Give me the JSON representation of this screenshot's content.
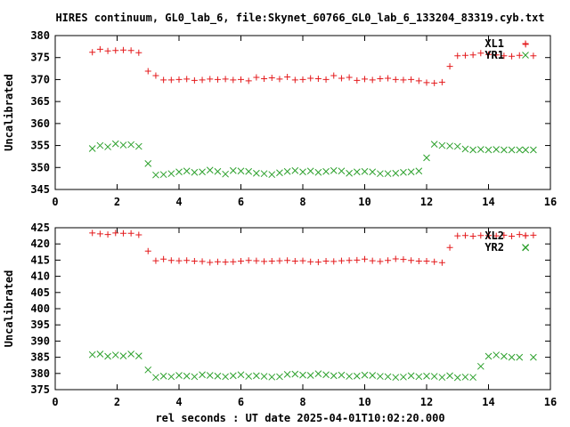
{
  "title": "HIRES continuum, GL0_lab_6, file:Skynet_60766_GL0_lab_6_133204_83319.cyb.txt",
  "xlabel": "rel seconds : UT date 2025-04-01T10:02:20.000",
  "colors": {
    "red": "#e41a1c",
    "green": "#2ca02c"
  },
  "chart_data": [
    {
      "type": "scatter",
      "ylabel": "Uncalibrated",
      "xlim": [
        0,
        16
      ],
      "ylim": [
        345,
        380
      ],
      "xticks": [
        0,
        2,
        4,
        6,
        8,
        10,
        12,
        14,
        16
      ],
      "yticks": [
        345,
        350,
        355,
        360,
        365,
        370,
        375,
        380
      ],
      "legend_position": "top-right",
      "series": [
        {
          "name": "XL1",
          "marker": "cross",
          "color": "#e41a1c",
          "x": [
            1.2,
            1.45,
            1.7,
            1.95,
            2.2,
            2.45,
            2.7,
            3.0,
            3.25,
            3.5,
            3.75,
            4.0,
            4.25,
            4.5,
            4.75,
            5.0,
            5.25,
            5.5,
            5.75,
            6.0,
            6.25,
            6.5,
            6.75,
            7.0,
            7.25,
            7.5,
            7.75,
            8.0,
            8.25,
            8.5,
            8.75,
            9.0,
            9.25,
            9.5,
            9.75,
            10.0,
            10.25,
            10.5,
            10.75,
            11.0,
            11.25,
            11.5,
            11.75,
            12.0,
            12.25,
            12.5,
            12.75,
            13.0,
            13.25,
            13.5,
            13.75,
            14.0,
            14.25,
            14.5,
            14.75,
            15.0,
            15.2,
            15.45
          ],
          "y": [
            376.2,
            376.9,
            376.5,
            376.6,
            376.7,
            376.6,
            376.1,
            371.9,
            370.9,
            369.9,
            369.9,
            370.0,
            370.1,
            369.8,
            369.9,
            370.1,
            370.0,
            370.1,
            369.9,
            370.0,
            369.7,
            370.5,
            370.2,
            370.4,
            370.1,
            370.6,
            369.9,
            370.0,
            370.3,
            370.2,
            370.0,
            370.9,
            370.3,
            370.5,
            369.8,
            370.1,
            369.9,
            370.2,
            370.3,
            370.0,
            369.9,
            370.0,
            369.7,
            369.3,
            369.2,
            369.4,
            373.0,
            375.4,
            375.5,
            375.6,
            376.0,
            375.7,
            375.6,
            375.4,
            375.3,
            375.5,
            378.0,
            375.4
          ]
        },
        {
          "name": "YR1",
          "marker": "x",
          "color": "#2ca02c",
          "x": [
            1.2,
            1.45,
            1.7,
            1.95,
            2.2,
            2.45,
            2.7,
            3.0,
            3.25,
            3.5,
            3.75,
            4.0,
            4.25,
            4.5,
            4.75,
            5.0,
            5.25,
            5.5,
            5.75,
            6.0,
            6.25,
            6.5,
            6.75,
            7.0,
            7.25,
            7.5,
            7.75,
            8.0,
            8.25,
            8.5,
            8.75,
            9.0,
            9.25,
            9.5,
            9.75,
            10.0,
            10.25,
            10.5,
            10.75,
            11.0,
            11.25,
            11.5,
            11.75,
            12.0,
            12.25,
            12.5,
            12.75,
            13.0,
            13.25,
            13.5,
            13.75,
            14.0,
            14.25,
            14.5,
            14.75,
            15.0,
            15.2,
            15.45
          ],
          "y": [
            354.3,
            355.0,
            354.7,
            355.4,
            355.1,
            355.2,
            354.8,
            350.9,
            348.3,
            348.4,
            348.6,
            349.0,
            349.2,
            348.9,
            349.0,
            349.4,
            349.1,
            348.5,
            349.3,
            349.2,
            349.1,
            348.7,
            348.6,
            348.4,
            348.8,
            349.1,
            349.3,
            349.0,
            349.2,
            348.9,
            349.1,
            349.3,
            349.2,
            348.7,
            349.0,
            349.1,
            349.0,
            348.6,
            348.6,
            348.7,
            348.9,
            349.0,
            349.2,
            352.2,
            355.3,
            355.0,
            354.9,
            354.8,
            354.2,
            354.0,
            354.1,
            354.0,
            354.1,
            354.0,
            354.0,
            354.0,
            354.0,
            354.0
          ]
        }
      ]
    },
    {
      "type": "scatter",
      "ylabel": "Uncalibrated",
      "xlim": [
        0,
        16
      ],
      "ylim": [
        375,
        425
      ],
      "xticks": [
        0,
        2,
        4,
        6,
        8,
        10,
        12,
        14,
        16
      ],
      "yticks": [
        375,
        380,
        385,
        390,
        395,
        400,
        405,
        410,
        415,
        420,
        425
      ],
      "legend_position": "top-right",
      "series": [
        {
          "name": "XL2",
          "marker": "cross",
          "color": "#e41a1c",
          "x": [
            1.2,
            1.45,
            1.7,
            1.95,
            2.2,
            2.45,
            2.7,
            3.0,
            3.25,
            3.5,
            3.75,
            4.0,
            4.25,
            4.5,
            4.75,
            5.0,
            5.25,
            5.5,
            5.75,
            6.0,
            6.25,
            6.5,
            6.75,
            7.0,
            7.25,
            7.5,
            7.75,
            8.0,
            8.25,
            8.5,
            8.75,
            9.0,
            9.25,
            9.5,
            9.75,
            10.0,
            10.25,
            10.5,
            10.75,
            11.0,
            11.25,
            11.5,
            11.75,
            12.0,
            12.25,
            12.5,
            12.75,
            13.0,
            13.25,
            13.5,
            13.75,
            14.0,
            14.25,
            14.5,
            14.75,
            15.0,
            15.2,
            15.45
          ],
          "y": [
            423.4,
            423.1,
            422.9,
            423.4,
            423.3,
            423.3,
            422.8,
            417.8,
            414.8,
            415.3,
            414.9,
            414.8,
            414.9,
            414.7,
            414.6,
            414.3,
            414.5,
            414.4,
            414.5,
            414.7,
            414.9,
            414.8,
            414.6,
            414.7,
            414.8,
            414.9,
            414.7,
            414.8,
            414.5,
            414.4,
            414.7,
            414.6,
            414.8,
            414.9,
            415.0,
            415.3,
            414.8,
            414.6,
            414.9,
            415.4,
            415.2,
            414.9,
            414.7,
            414.7,
            414.5,
            414.2,
            418.9,
            422.5,
            422.6,
            422.4,
            422.6,
            422.6,
            422.5,
            422.7,
            422.4,
            422.9,
            422.6,
            422.7
          ]
        },
        {
          "name": "YR2",
          "marker": "x",
          "color": "#2ca02c",
          "x": [
            1.2,
            1.45,
            1.7,
            1.95,
            2.2,
            2.45,
            2.7,
            3.0,
            3.25,
            3.5,
            3.75,
            4.0,
            4.25,
            4.5,
            4.75,
            5.0,
            5.25,
            5.5,
            5.75,
            6.0,
            6.25,
            6.5,
            6.75,
            7.0,
            7.25,
            7.5,
            7.75,
            8.0,
            8.25,
            8.5,
            8.75,
            9.0,
            9.25,
            9.5,
            9.75,
            10.0,
            10.25,
            10.5,
            10.75,
            11.0,
            11.25,
            11.5,
            11.75,
            12.0,
            12.25,
            12.5,
            12.75,
            13.0,
            13.25,
            13.5,
            13.75,
            14.0,
            14.25,
            14.5,
            14.75,
            15.0,
            15.2,
            15.45
          ],
          "y": [
            385.8,
            386.0,
            385.3,
            385.7,
            385.4,
            386.0,
            385.4,
            381.1,
            378.8,
            379.2,
            379.0,
            379.4,
            379.2,
            379.0,
            379.6,
            379.4,
            379.2,
            379.0,
            379.3,
            379.6,
            379.1,
            379.3,
            379.1,
            378.9,
            379.0,
            379.7,
            379.8,
            379.5,
            379.4,
            379.9,
            379.6,
            379.3,
            379.5,
            379.1,
            379.2,
            379.5,
            379.4,
            379.1,
            379.0,
            378.8,
            378.9,
            379.3,
            379.0,
            379.2,
            379.1,
            378.8,
            379.3,
            378.7,
            378.9,
            378.8,
            382.2,
            385.3,
            385.7,
            385.3,
            385.0,
            385.0,
            418.8,
            385.0
          ]
        }
      ]
    }
  ]
}
